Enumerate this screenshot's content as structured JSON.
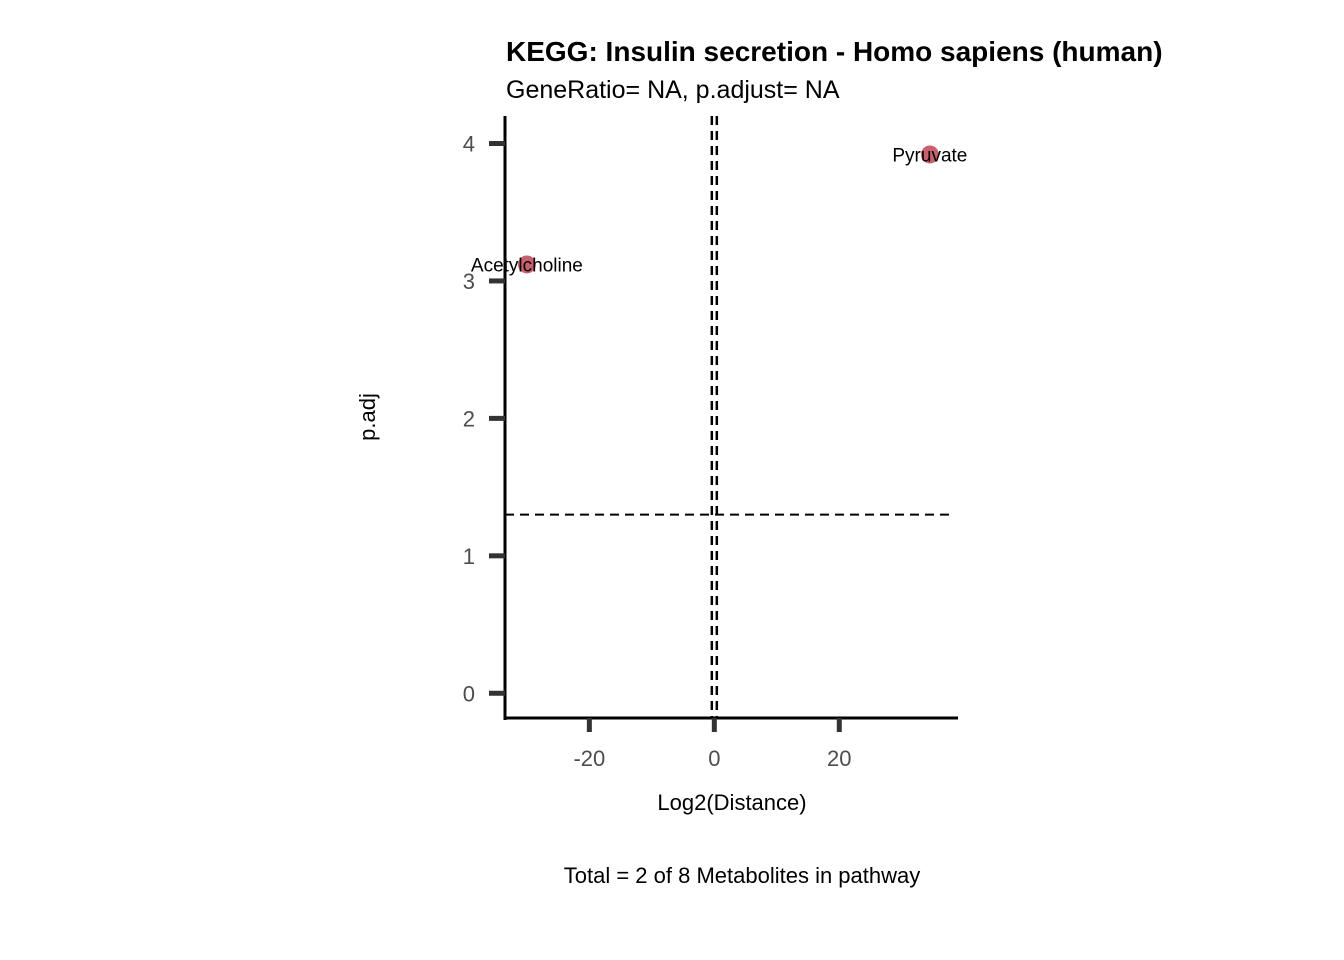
{
  "chart_data": {
    "type": "scatter",
    "title": "KEGG: Insulin secretion - Homo sapiens (human)",
    "subtitle": "GeneRatio= NA, p.adjust= NA",
    "xlabel": "Log2(Distance)",
    "ylabel": "p.adj",
    "caption": "Total = 2 of 8 Metabolites in pathway",
    "xlim": [
      -33.5,
      39
    ],
    "ylim": [
      -0.18,
      4.2
    ],
    "x_ticks": [
      {
        "value": -20,
        "label": "-20"
      },
      {
        "value": 0,
        "label": "0"
      },
      {
        "value": 20,
        "label": "20"
      }
    ],
    "y_ticks": [
      {
        "value": 0,
        "label": "0"
      },
      {
        "value": 1,
        "label": "1"
      },
      {
        "value": 2,
        "label": "2"
      },
      {
        "value": 3,
        "label": "3"
      },
      {
        "value": 4,
        "label": "4"
      }
    ],
    "points": [
      {
        "label": "Pyruvate",
        "x": 34.5,
        "y": 3.92
      },
      {
        "label": "Acetylcholine",
        "x": -30,
        "y": 3.12
      }
    ],
    "reference_lines": {
      "vertical": [
        -0.4,
        0.4
      ],
      "horizontal": [
        1.3
      ]
    },
    "point_color": "#c9606e",
    "grid": false,
    "legend": "none"
  }
}
